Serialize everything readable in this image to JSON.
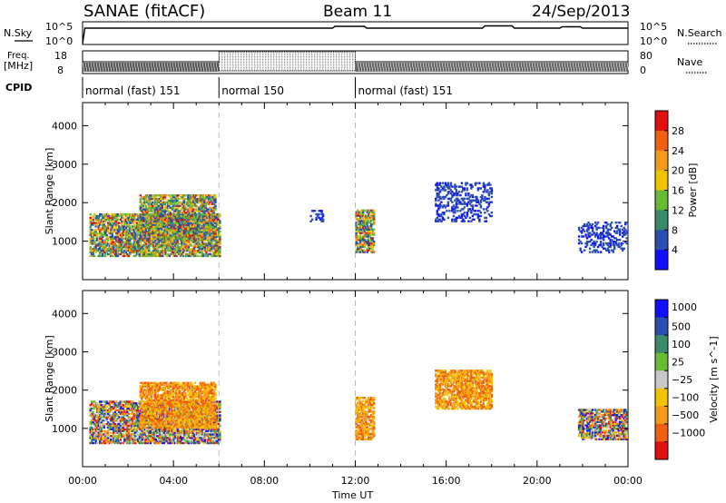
{
  "header": {
    "radar": "SANAE (fitACF)",
    "beam": "Beam 11",
    "date": "24/Sep/2013"
  },
  "strip": {
    "nsky_label": "N.Sky",
    "nsky_top": "10^5",
    "nsky_bottom": "10^0",
    "nsearch_label": "N.Search",
    "nsearch_top": "10^5",
    "nsearch_bottom": "10^0",
    "freq_label_1": "Freq.",
    "freq_label_2": "[MHz]",
    "freq_top": "18",
    "freq_bottom": "8",
    "nave_label": "Nave",
    "nave_top": "80",
    "nave_bottom": "0",
    "cpid_label": "CPID",
    "modes": [
      {
        "label": "normal (fast) 151",
        "start_h": 0,
        "end_h": 6
      },
      {
        "label": "normal 150",
        "start_h": 6,
        "end_h": 12
      },
      {
        "label": "normal (fast) 151",
        "start_h": 12,
        "end_h": 24
      }
    ]
  },
  "colors": {
    "power": [
      "#1010ff",
      "#2a4fb0",
      "#3a8a6a",
      "#66bb33",
      "#f2c200",
      "#f39a1a",
      "#f06010",
      "#e01010"
    ],
    "velocity": [
      "#e01010",
      "#f06010",
      "#f39a1a",
      "#f2c200",
      "#c8c8c8",
      "#66bb33",
      "#3a8a6a",
      "#2a4fb0",
      "#1010ff"
    ],
    "dash_line": "#b8b8b8"
  },
  "chart_data": [
    {
      "type": "heatmap",
      "name": "power",
      "ylabel": "Slant Range [km]",
      "xlabel": "",
      "xlim_hours": [
        0,
        24
      ],
      "ylim": [
        0,
        4600
      ],
      "yticks": [
        "1000",
        "2000",
        "3000",
        "4000"
      ],
      "xticks": [],
      "colorbar_label": "Power [dB]",
      "colorbar_ticks": [
        "4",
        "8",
        "12",
        "16",
        "20",
        "24",
        "28"
      ],
      "colorbar_range": [
        0,
        32
      ],
      "regions": [
        {
          "t": [
            0.3,
            6.0
          ],
          "r": [
            600,
            1700
          ],
          "level": "mixed high"
        },
        {
          "t": [
            2.5,
            5.8
          ],
          "r": [
            1000,
            2200
          ],
          "level": "mixed"
        },
        {
          "t": [
            10.0,
            10.6
          ],
          "r": [
            1500,
            1800
          ],
          "level": "low"
        },
        {
          "t": [
            12.0,
            12.8
          ],
          "r": [
            700,
            1800
          ],
          "level": "mixed"
        },
        {
          "t": [
            15.5,
            18.0
          ],
          "r": [
            1500,
            2500
          ],
          "level": "low"
        },
        {
          "t": [
            21.8,
            23.9
          ],
          "r": [
            700,
            1500
          ],
          "level": "low"
        }
      ]
    },
    {
      "type": "heatmap",
      "name": "velocity",
      "ylabel": "Slant Range [km]",
      "xlabel": "Time UT",
      "xlim_hours": [
        0,
        24
      ],
      "ylim": [
        0,
        4600
      ],
      "yticks": [
        "1000",
        "2000",
        "3000",
        "4000"
      ],
      "xticks": [
        "00:00",
        "04:00",
        "08:00",
        "12:00",
        "16:00",
        "20:00",
        "00:00"
      ],
      "colorbar_label": "Velocity [m s^-1]",
      "colorbar_ticks": [
        "1000",
        "500",
        "100",
        "25",
        "−25",
        "−100",
        "−500",
        "−1000"
      ],
      "regions": [
        {
          "t": [
            0.3,
            6.0
          ],
          "r": [
            600,
            1700
          ],
          "level": "mixed"
        },
        {
          "t": [
            2.5,
            5.8
          ],
          "r": [
            1000,
            2200
          ],
          "level": "negative"
        },
        {
          "t": [
            12.0,
            12.8
          ],
          "r": [
            700,
            1800
          ],
          "level": "negative"
        },
        {
          "t": [
            15.5,
            18.0
          ],
          "r": [
            1500,
            2500
          ],
          "level": "negative"
        },
        {
          "t": [
            21.8,
            23.9
          ],
          "r": [
            700,
            1500
          ],
          "level": "mixed"
        }
      ]
    }
  ]
}
